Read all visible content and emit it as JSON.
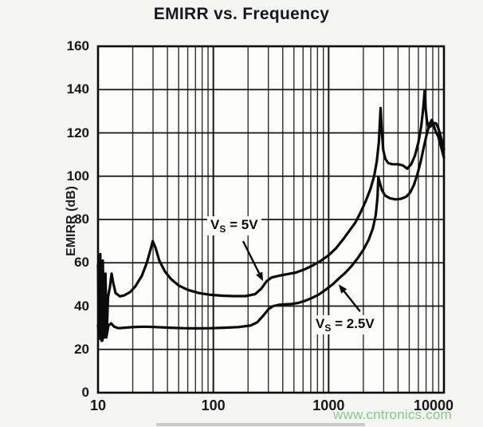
{
  "page": {
    "title": "EMIRR vs. Frequency",
    "watermark": "www.cntronics.com"
  },
  "chart_data": {
    "type": "line",
    "title": "EMIRR vs. Frequency",
    "xlabel": "",
    "ylabel": "EMIRR (dB)",
    "x_scale": "log",
    "xlim": [
      10,
      10000
    ],
    "ylim": [
      0,
      160
    ],
    "x_ticks": [
      10,
      100,
      1000,
      10000
    ],
    "x_tick_labels": [
      "10",
      "100",
      "1000",
      "10000"
    ],
    "y_ticks": [
      0,
      20,
      40,
      60,
      80,
      100,
      120,
      140,
      160
    ],
    "grid": "log minor verticals (2-9 per decade), horizontals every 20 dB",
    "legend_position": "inline annotations with arrows",
    "series": [
      {
        "name": "VS = 5V",
        "points": [
          [
            10,
            59
          ],
          [
            10.2,
            27
          ],
          [
            10.45,
            64
          ],
          [
            10.7,
            24
          ],
          [
            11,
            61
          ],
          [
            11.3,
            25.5
          ],
          [
            11.6,
            55
          ],
          [
            11.9,
            27
          ],
          [
            12.2,
            44
          ],
          [
            12.7,
            49
          ],
          [
            13.1,
            55
          ],
          [
            13.5,
            51
          ],
          [
            14.2,
            46
          ],
          [
            15.5,
            44.5
          ],
          [
            17,
            45
          ],
          [
            19,
            46.5
          ],
          [
            21,
            49
          ],
          [
            24,
            54
          ],
          [
            26.5,
            60
          ],
          [
            28.5,
            66
          ],
          [
            29.8,
            70
          ],
          [
            31.5,
            67
          ],
          [
            34,
            61
          ],
          [
            38,
            56
          ],
          [
            43,
            52.5
          ],
          [
            50,
            49.5
          ],
          [
            60,
            47.5
          ],
          [
            75,
            46
          ],
          [
            95,
            45.2
          ],
          [
            120,
            44.8
          ],
          [
            150,
            44.6
          ],
          [
            190,
            44.6
          ],
          [
            230,
            45.5
          ],
          [
            260,
            48
          ],
          [
            290,
            51.5
          ],
          [
            320,
            53.2
          ],
          [
            370,
            54
          ],
          [
            440,
            54.8
          ],
          [
            520,
            55.5
          ],
          [
            620,
            57
          ],
          [
            730,
            58.8
          ],
          [
            860,
            61
          ],
          [
            1000,
            63.5
          ],
          [
            1150,
            66.5
          ],
          [
            1320,
            70.5
          ],
          [
            1500,
            74.5
          ],
          [
            1700,
            78.5
          ],
          [
            1900,
            83.5
          ],
          [
            2100,
            88.5
          ],
          [
            2300,
            94
          ],
          [
            2480,
            100
          ],
          [
            2620,
            107
          ],
          [
            2730,
            116
          ],
          [
            2820,
            131.5
          ],
          [
            2890,
            121
          ],
          [
            2980,
            112
          ],
          [
            3100,
            108
          ],
          [
            3300,
            106
          ],
          [
            3600,
            105.5
          ],
          [
            4000,
            105.5
          ],
          [
            4400,
            105
          ],
          [
            4800,
            103.5
          ],
          [
            5200,
            105.5
          ],
          [
            5600,
            109.5
          ],
          [
            6000,
            115.5
          ],
          [
            6350,
            123
          ],
          [
            6600,
            131
          ],
          [
            6800,
            139.5
          ],
          [
            6950,
            131
          ],
          [
            7100,
            126
          ],
          [
            7350,
            122.5
          ],
          [
            7650,
            123
          ],
          [
            8100,
            124.5
          ],
          [
            8500,
            124.5
          ],
          [
            8900,
            122.5
          ],
          [
            9300,
            119
          ],
          [
            9650,
            115.5
          ],
          [
            10000,
            112.5
          ]
        ]
      },
      {
        "name": "VS = 2.5V",
        "points": [
          [
            10,
            31
          ],
          [
            10.3,
            25
          ],
          [
            10.6,
            33
          ],
          [
            10.9,
            24
          ],
          [
            11.3,
            29
          ],
          [
            11.8,
            25.5
          ],
          [
            12.3,
            31
          ],
          [
            13,
            32
          ],
          [
            13.8,
            30.5
          ],
          [
            15,
            29.8
          ],
          [
            17,
            30
          ],
          [
            20,
            30.3
          ],
          [
            25,
            30.5
          ],
          [
            32,
            30.3
          ],
          [
            42,
            30
          ],
          [
            55,
            29.8
          ],
          [
            72,
            29.7
          ],
          [
            95,
            29.8
          ],
          [
            125,
            30
          ],
          [
            165,
            30.3
          ],
          [
            210,
            31
          ],
          [
            240,
            32.5
          ],
          [
            270,
            35.5
          ],
          [
            300,
            38.5
          ],
          [
            330,
            40
          ],
          [
            370,
            40.6
          ],
          [
            420,
            40.8
          ],
          [
            480,
            41
          ],
          [
            550,
            41.5
          ],
          [
            630,
            42.5
          ],
          [
            720,
            43.8
          ],
          [
            820,
            45.3
          ],
          [
            940,
            47.5
          ],
          [
            1080,
            50
          ],
          [
            1230,
            52.8
          ],
          [
            1400,
            55.5
          ],
          [
            1580,
            58.5
          ],
          [
            1780,
            62
          ],
          [
            2000,
            66
          ],
          [
            2220,
            70.5
          ],
          [
            2420,
            76
          ],
          [
            2560,
            82
          ],
          [
            2650,
            90
          ],
          [
            2700,
            99.5
          ],
          [
            2780,
            97
          ],
          [
            2900,
            93.5
          ],
          [
            3100,
            91
          ],
          [
            3400,
            89.8
          ],
          [
            3800,
            89.3
          ],
          [
            4200,
            89.5
          ],
          [
            4700,
            90.5
          ],
          [
            5100,
            92.5
          ],
          [
            5500,
            96
          ],
          [
            5900,
            101
          ],
          [
            6300,
            107
          ],
          [
            6700,
            113.5
          ],
          [
            7100,
            119.5
          ],
          [
            7500,
            124
          ],
          [
            7850,
            126
          ],
          [
            8150,
            123.5
          ],
          [
            8500,
            120.5
          ],
          [
            8900,
            118.5
          ],
          [
            9400,
            114
          ],
          [
            10000,
            108.5
          ]
        ]
      }
    ],
    "annotations": [
      {
        "pre": "V",
        "sub": "S",
        "post": " = 5V",
        "arrow_from": [
          181,
          70
        ],
        "arrow_to": [
          270,
          51.5
        ]
      },
      {
        "pre": "V",
        "sub": "S",
        "post": " = 2.5V",
        "arrow_from": [
          1875,
          37.5
        ],
        "arrow_to": [
          1222,
          50
        ]
      }
    ]
  },
  "colors": {
    "curve": "#0b0b0b",
    "grid_minor": "#2e2e2e",
    "grid_major": "#161616",
    "frame": "#0a0a0a",
    "title_text": "#141824",
    "tick_text": "#17181a",
    "watermark": "#74c97c",
    "plot_bg": "#fdfdfb",
    "page_bg": "#f5f5f2"
  }
}
